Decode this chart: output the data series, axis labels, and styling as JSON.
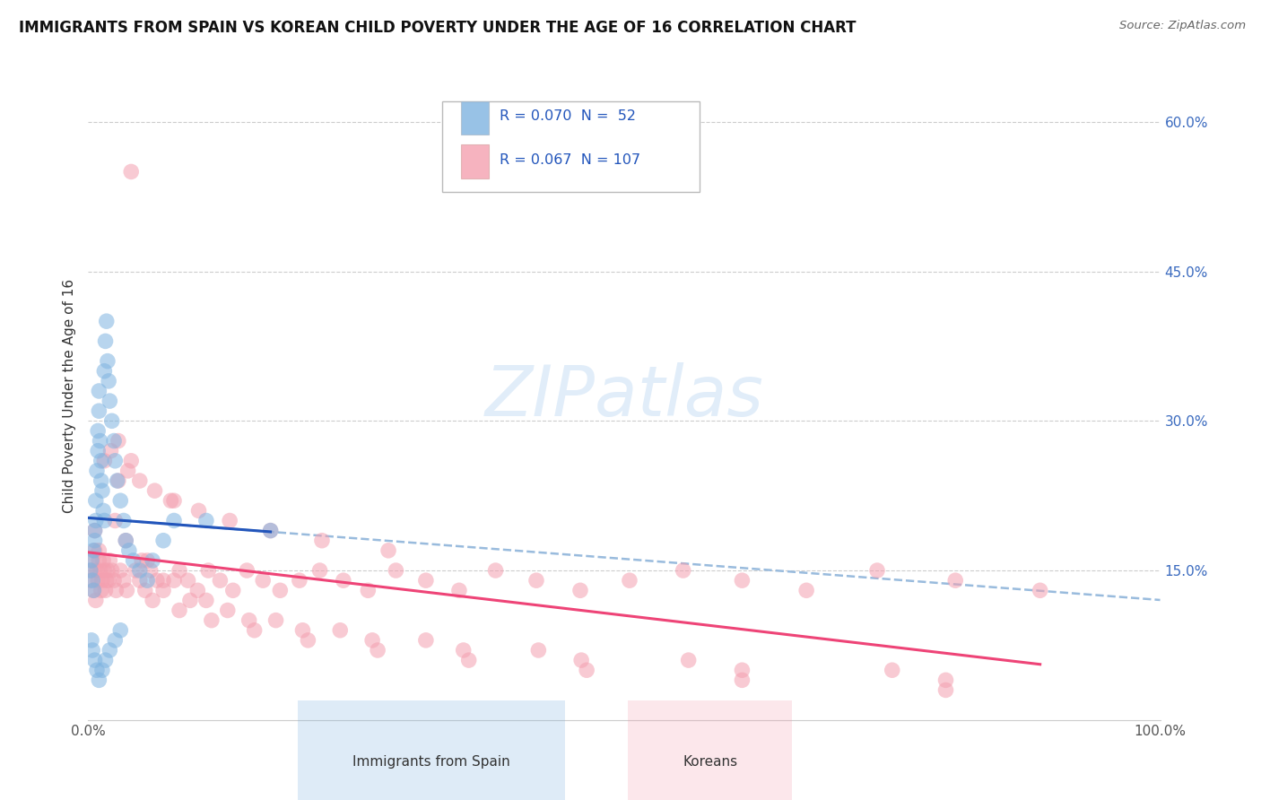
{
  "title": "IMMIGRANTS FROM SPAIN VS KOREAN CHILD POVERTY UNDER THE AGE OF 16 CORRELATION CHART",
  "source": "Source: ZipAtlas.com",
  "ylabel_label": "Child Poverty Under the Age of 16",
  "legend_blue_R": "0.070",
  "legend_blue_N": "52",
  "legend_pink_R": "0.067",
  "legend_pink_N": "107",
  "legend_blue_label": "Immigrants from Spain",
  "legend_pink_label": "Koreans",
  "background_color": "#ffffff",
  "plot_bg_color": "#ffffff",
  "grid_color": "#cccccc",
  "blue_color": "#7eb3e0",
  "pink_color": "#f4a0b0",
  "blue_line_color": "#2255bb",
  "pink_line_color": "#ee4477",
  "dash_line_color": "#99bbdd",
  "watermark": "ZIPatlas",
  "xlim": [
    0.0,
    1.0
  ],
  "ylim": [
    0.0,
    0.65
  ],
  "ytick_vals": [
    0.15,
    0.3,
    0.45,
    0.6
  ],
  "ytick_labels": [
    "15.0%",
    "30.0%",
    "45.0%",
    "60.0%"
  ],
  "blue_scatter_x": [
    0.002,
    0.003,
    0.004,
    0.005,
    0.005,
    0.006,
    0.006,
    0.007,
    0.007,
    0.008,
    0.009,
    0.009,
    0.01,
    0.01,
    0.011,
    0.012,
    0.012,
    0.013,
    0.014,
    0.015,
    0.015,
    0.016,
    0.017,
    0.018,
    0.019,
    0.02,
    0.022,
    0.024,
    0.025,
    0.027,
    0.03,
    0.033,
    0.035,
    0.038,
    0.042,
    0.048,
    0.055,
    0.06,
    0.07,
    0.08,
    0.003,
    0.004,
    0.006,
    0.008,
    0.01,
    0.013,
    0.016,
    0.02,
    0.025,
    0.03,
    0.11,
    0.17
  ],
  "blue_scatter_y": [
    0.15,
    0.16,
    0.14,
    0.17,
    0.13,
    0.18,
    0.19,
    0.2,
    0.22,
    0.25,
    0.27,
    0.29,
    0.31,
    0.33,
    0.28,
    0.26,
    0.24,
    0.23,
    0.21,
    0.2,
    0.35,
    0.38,
    0.4,
    0.36,
    0.34,
    0.32,
    0.3,
    0.28,
    0.26,
    0.24,
    0.22,
    0.2,
    0.18,
    0.17,
    0.16,
    0.15,
    0.14,
    0.16,
    0.18,
    0.2,
    0.08,
    0.07,
    0.06,
    0.05,
    0.04,
    0.05,
    0.06,
    0.07,
    0.08,
    0.09,
    0.2,
    0.19
  ],
  "pink_scatter_x": [
    0.002,
    0.003,
    0.004,
    0.005,
    0.006,
    0.007,
    0.008,
    0.009,
    0.01,
    0.011,
    0.012,
    0.013,
    0.014,
    0.015,
    0.016,
    0.017,
    0.018,
    0.019,
    0.02,
    0.022,
    0.024,
    0.026,
    0.028,
    0.03,
    0.033,
    0.036,
    0.04,
    0.044,
    0.048,
    0.053,
    0.058,
    0.064,
    0.07,
    0.077,
    0.085,
    0.093,
    0.102,
    0.112,
    0.123,
    0.135,
    0.148,
    0.163,
    0.179,
    0.197,
    0.216,
    0.238,
    0.261,
    0.287,
    0.315,
    0.346,
    0.38,
    0.418,
    0.459,
    0.505,
    0.555,
    0.61,
    0.67,
    0.736,
    0.809,
    0.888,
    0.006,
    0.01,
    0.015,
    0.021,
    0.028,
    0.037,
    0.048,
    0.062,
    0.08,
    0.103,
    0.132,
    0.17,
    0.218,
    0.28,
    0.025,
    0.035,
    0.05,
    0.07,
    0.095,
    0.13,
    0.175,
    0.235,
    0.315,
    0.42,
    0.56,
    0.75,
    0.04,
    0.06,
    0.085,
    0.115,
    0.155,
    0.205,
    0.27,
    0.355,
    0.465,
    0.61,
    0.8,
    0.055,
    0.08,
    0.11,
    0.15,
    0.2,
    0.265,
    0.35,
    0.46,
    0.61,
    0.8
  ],
  "pink_scatter_y": [
    0.14,
    0.15,
    0.16,
    0.13,
    0.17,
    0.12,
    0.15,
    0.14,
    0.16,
    0.15,
    0.13,
    0.14,
    0.16,
    0.15,
    0.13,
    0.14,
    0.15,
    0.14,
    0.16,
    0.15,
    0.14,
    0.13,
    0.24,
    0.15,
    0.14,
    0.13,
    0.26,
    0.15,
    0.14,
    0.13,
    0.15,
    0.14,
    0.13,
    0.22,
    0.15,
    0.14,
    0.13,
    0.15,
    0.14,
    0.13,
    0.15,
    0.14,
    0.13,
    0.14,
    0.15,
    0.14,
    0.13,
    0.15,
    0.14,
    0.13,
    0.15,
    0.14,
    0.13,
    0.14,
    0.15,
    0.14,
    0.13,
    0.15,
    0.14,
    0.13,
    0.19,
    0.17,
    0.26,
    0.27,
    0.28,
    0.25,
    0.24,
    0.23,
    0.22,
    0.21,
    0.2,
    0.19,
    0.18,
    0.17,
    0.2,
    0.18,
    0.16,
    0.14,
    0.12,
    0.11,
    0.1,
    0.09,
    0.08,
    0.07,
    0.06,
    0.05,
    0.55,
    0.12,
    0.11,
    0.1,
    0.09,
    0.08,
    0.07,
    0.06,
    0.05,
    0.04,
    0.03,
    0.16,
    0.14,
    0.12,
    0.1,
    0.09,
    0.08,
    0.07,
    0.06,
    0.05,
    0.04
  ]
}
